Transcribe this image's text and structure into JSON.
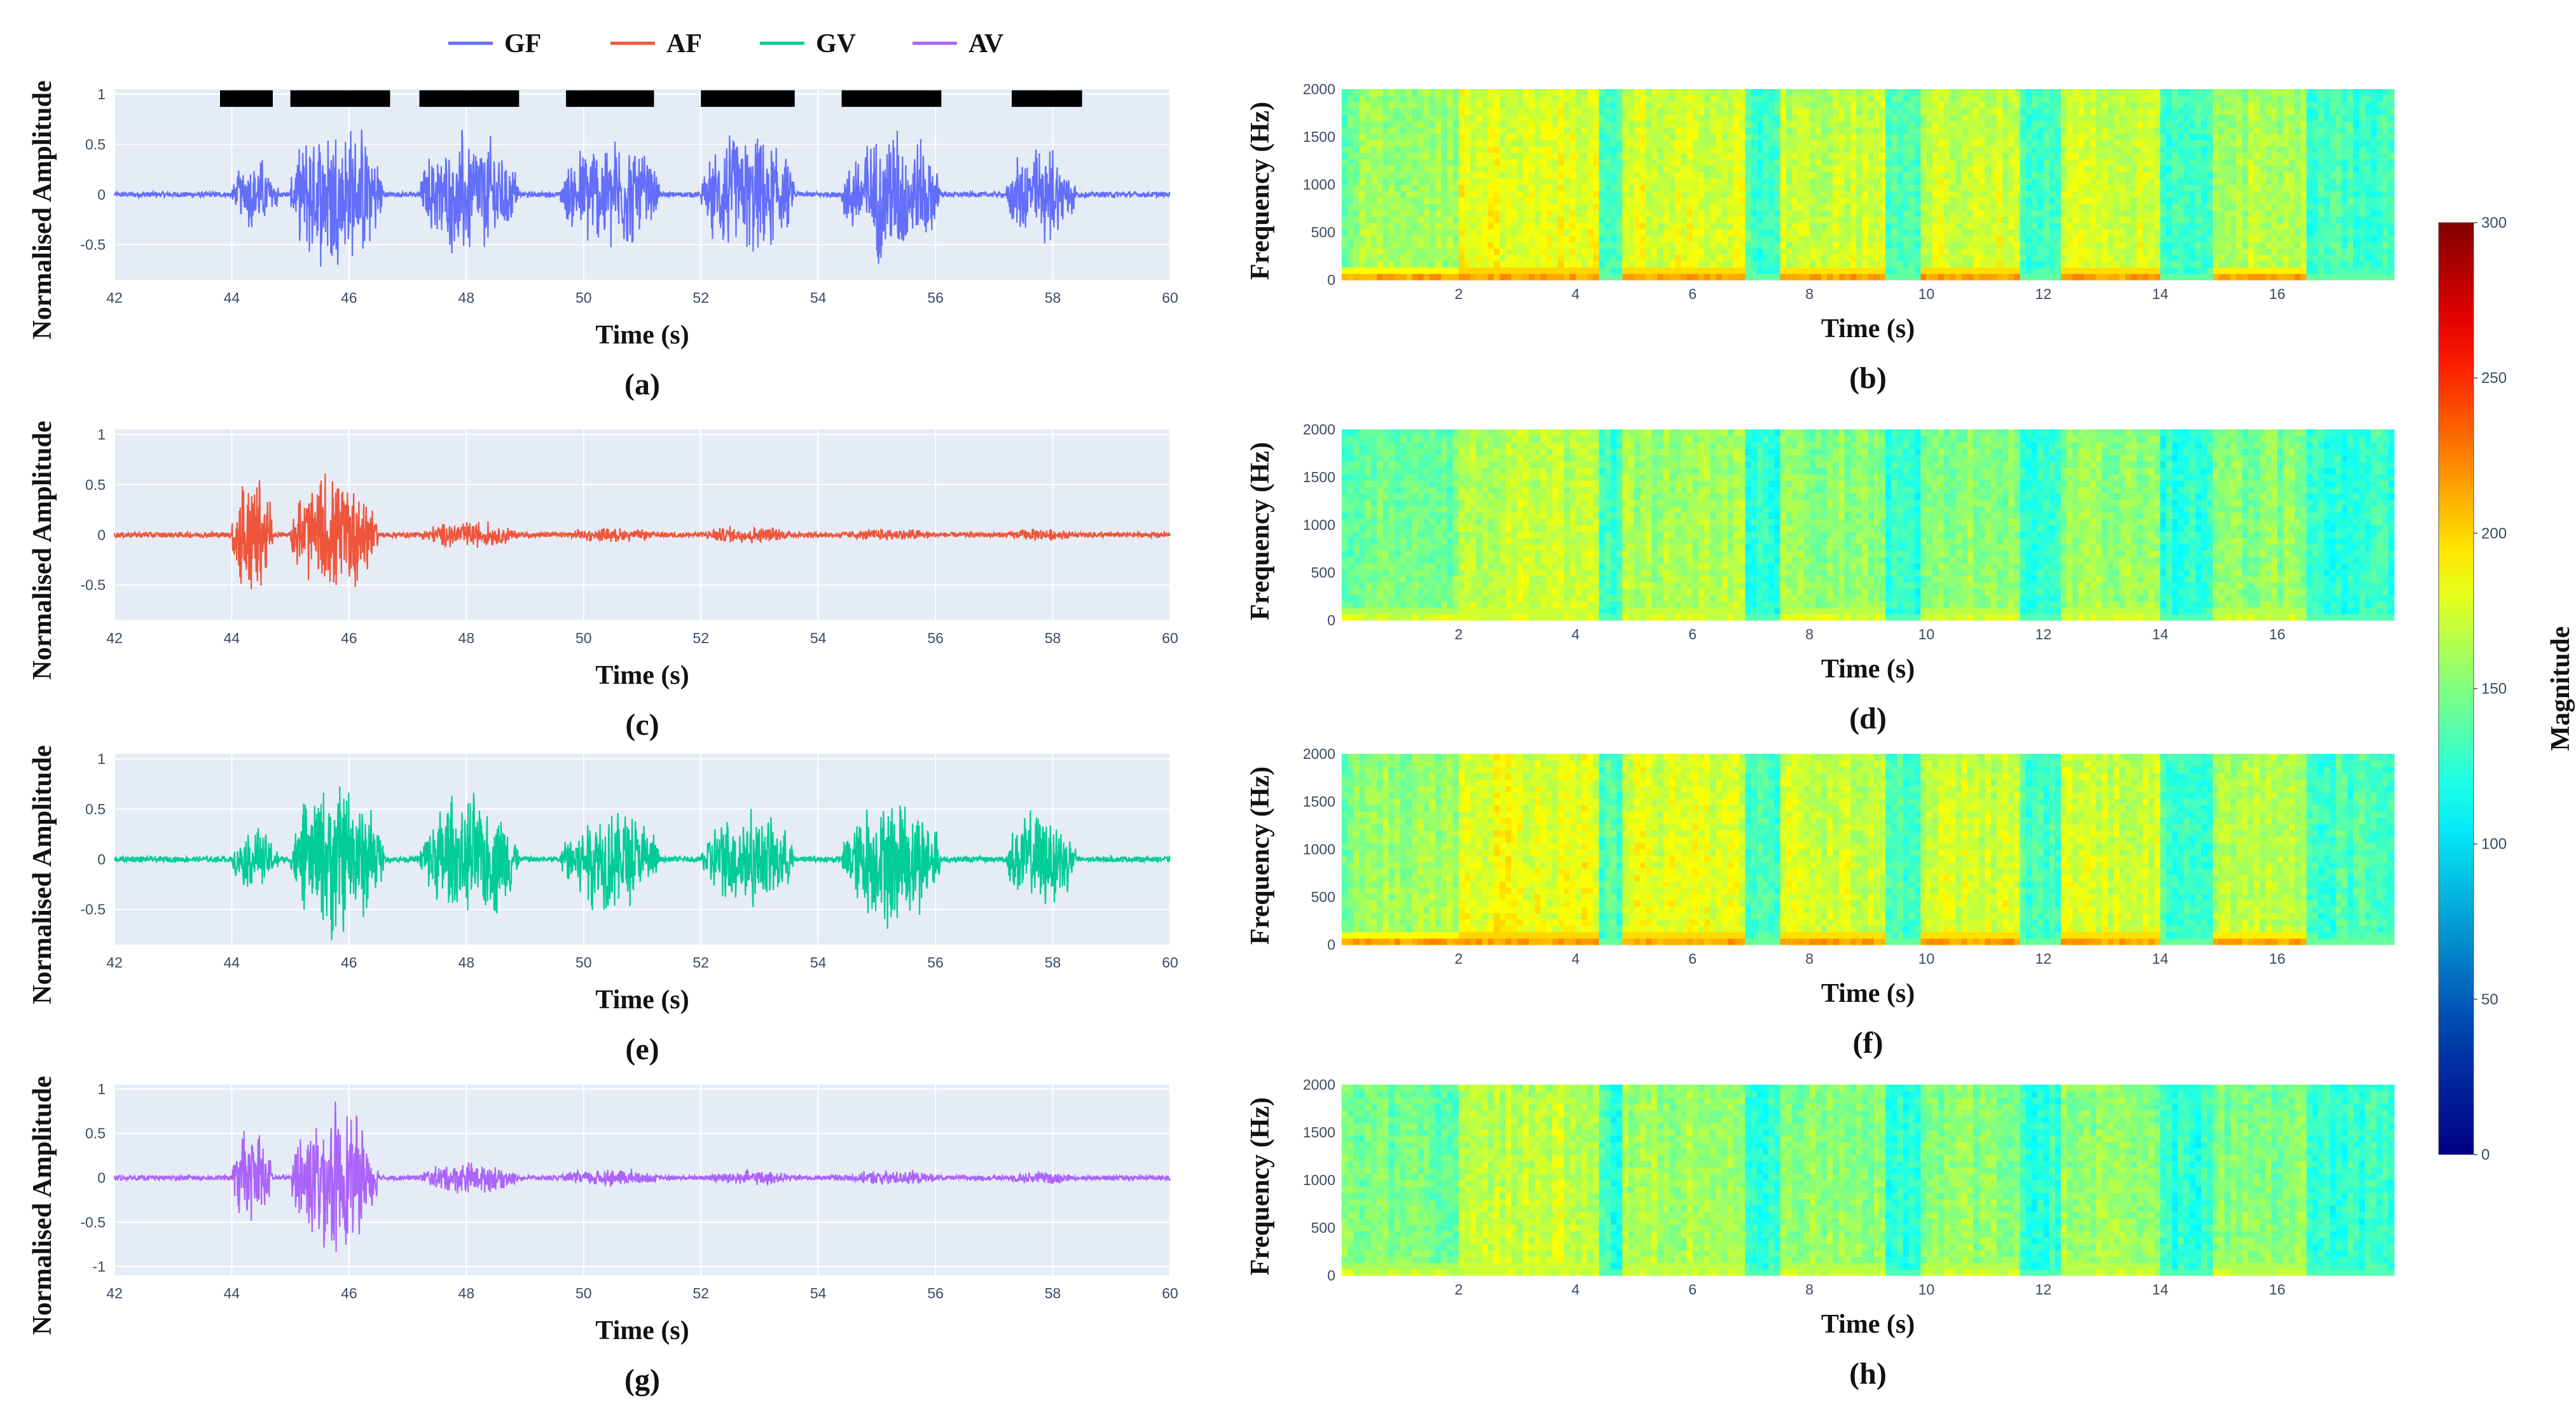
{
  "legend": [
    {
      "name": "GF",
      "color": "#636efa"
    },
    {
      "name": "AF",
      "color": "#ef553b"
    },
    {
      "name": "GV",
      "color": "#00cc96"
    },
    {
      "name": "AV",
      "color": "#ab63fa"
    }
  ],
  "colorbar": {
    "title": "Magnitude",
    "ticks": [
      "0",
      "50",
      "100",
      "150",
      "200",
      "250",
      "300"
    ],
    "range": [
      0,
      300
    ],
    "colorscale": "jet"
  },
  "chart_data": [
    {
      "id": "a",
      "type": "line",
      "caption": "(a)",
      "series": "GF",
      "color": "#636efa",
      "xlabel": "Time (s)",
      "ylabel": "Normalised Amplitude",
      "xlim": [
        42,
        60
      ],
      "ylim": [
        -0.85,
        1.05
      ],
      "xticks": [
        "42",
        "44",
        "46",
        "48",
        "50",
        "52",
        "54",
        "56",
        "58",
        "60"
      ],
      "yticks": [
        "1",
        "0.5",
        "0",
        "-0.5"
      ],
      "bursts": [
        {
          "start": 44.0,
          "end": 44.8,
          "amp": 0.4
        },
        {
          "start": 45.0,
          "end": 46.6,
          "amp": 0.85
        },
        {
          "start": 47.2,
          "end": 48.9,
          "amp": 0.7
        },
        {
          "start": 49.6,
          "end": 51.3,
          "amp": 0.65
        },
        {
          "start": 52.0,
          "end": 53.6,
          "amp": 0.7
        },
        {
          "start": 54.4,
          "end": 56.1,
          "amp": 0.75
        },
        {
          "start": 57.2,
          "end": 58.4,
          "amp": 0.55
        }
      ],
      "segment_markers": [
        [
          43.8,
          44.7
        ],
        [
          45.0,
          46.7
        ],
        [
          47.2,
          48.9
        ],
        [
          49.7,
          51.2
        ],
        [
          52.0,
          53.6
        ],
        [
          54.4,
          56.1
        ],
        [
          57.3,
          58.5
        ]
      ]
    },
    {
      "id": "c",
      "type": "line",
      "caption": "(c)",
      "series": "AF",
      "color": "#ef553b",
      "xlabel": "Time (s)",
      "ylabel": "Normalised Amplitude",
      "xlim": [
        42,
        60
      ],
      "ylim": [
        -0.85,
        1.05
      ],
      "xticks": [
        "42",
        "44",
        "46",
        "48",
        "50",
        "52",
        "54",
        "56",
        "58",
        "60"
      ],
      "yticks": [
        "1",
        "0.5",
        "0",
        "-0.5"
      ],
      "bursts": [
        {
          "start": 44.0,
          "end": 44.7,
          "amp": 0.75
        },
        {
          "start": 45.0,
          "end": 46.5,
          "amp": 0.7
        },
        {
          "start": 47.2,
          "end": 48.9,
          "amp": 0.15
        },
        {
          "start": 49.6,
          "end": 51.3,
          "amp": 0.08
        },
        {
          "start": 52.0,
          "end": 53.6,
          "amp": 0.1
        },
        {
          "start": 54.4,
          "end": 56.1,
          "amp": 0.07
        },
        {
          "start": 57.2,
          "end": 58.4,
          "amp": 0.07
        }
      ]
    },
    {
      "id": "e",
      "type": "line",
      "caption": "(e)",
      "series": "GV",
      "color": "#00cc96",
      "xlabel": "Time (s)",
      "ylabel": "Normalised Amplitude",
      "xlim": [
        42,
        60
      ],
      "ylim": [
        -0.85,
        1.05
      ],
      "xticks": [
        "42",
        "44",
        "46",
        "48",
        "50",
        "52",
        "54",
        "56",
        "58",
        "60"
      ],
      "yticks": [
        "1",
        "0.5",
        "0",
        "-0.5"
      ],
      "bursts": [
        {
          "start": 44.0,
          "end": 44.8,
          "amp": 0.35
        },
        {
          "start": 45.0,
          "end": 46.6,
          "amp": 0.85
        },
        {
          "start": 47.2,
          "end": 48.9,
          "amp": 0.75
        },
        {
          "start": 49.6,
          "end": 51.3,
          "amp": 0.6
        },
        {
          "start": 52.0,
          "end": 53.6,
          "amp": 0.55
        },
        {
          "start": 54.4,
          "end": 56.1,
          "amp": 0.75
        },
        {
          "start": 57.2,
          "end": 58.4,
          "amp": 0.55
        }
      ]
    },
    {
      "id": "g",
      "type": "line",
      "caption": "(g)",
      "series": "AV",
      "color": "#ab63fa",
      "xlabel": "Time (s)",
      "ylabel": "Normalised Amplitude",
      "xlim": [
        42,
        60
      ],
      "ylim": [
        -1.1,
        1.05
      ],
      "xticks": [
        "42",
        "44",
        "46",
        "48",
        "50",
        "52",
        "54",
        "56",
        "58",
        "60"
      ],
      "yticks": [
        "1",
        "0.5",
        "0",
        "-0.5",
        "-1"
      ],
      "bursts": [
        {
          "start": 44.0,
          "end": 44.7,
          "amp": 0.65
        },
        {
          "start": 45.0,
          "end": 46.5,
          "amp": 0.9
        },
        {
          "start": 47.2,
          "end": 48.9,
          "amp": 0.2
        },
        {
          "start": 49.6,
          "end": 51.3,
          "amp": 0.12
        },
        {
          "start": 52.0,
          "end": 53.6,
          "amp": 0.1
        },
        {
          "start": 54.4,
          "end": 56.1,
          "amp": 0.1
        },
        {
          "start": 57.2,
          "end": 58.4,
          "amp": 0.08
        }
      ]
    },
    {
      "id": "b",
      "type": "heatmap",
      "caption": "(b)",
      "series": "GF",
      "xlabel": "Time (s)",
      "ylabel": "Frequency (Hz)",
      "xlim": [
        0,
        18
      ],
      "ylim": [
        0,
        2000
      ],
      "xticks": [
        "2",
        "4",
        "6",
        "8",
        "10",
        "12",
        "14",
        "16"
      ],
      "yticks": [
        "0",
        "500",
        "1000",
        "1500",
        "2000"
      ],
      "background_magnitude": 150,
      "speech_segments": [
        {
          "start": 0.0,
          "end": 2.0,
          "mag": 160
        },
        {
          "start": 2.0,
          "end": 4.4,
          "mag": 185
        },
        {
          "start": 4.8,
          "end": 6.9,
          "mag": 180
        },
        {
          "start": 7.5,
          "end": 9.3,
          "mag": 175
        },
        {
          "start": 9.9,
          "end": 11.6,
          "mag": 178
        },
        {
          "start": 12.3,
          "end": 14.0,
          "mag": 178
        },
        {
          "start": 14.9,
          "end": 16.5,
          "mag": 168
        }
      ],
      "gap_magnitude": 130,
      "low_band_magnitude": 215
    },
    {
      "id": "d",
      "type": "heatmap",
      "caption": "(d)",
      "series": "AF",
      "xlabel": "Time (s)",
      "ylabel": "Frequency (Hz)",
      "xlim": [
        0,
        18
      ],
      "ylim": [
        0,
        2000
      ],
      "xticks": [
        "2",
        "4",
        "6",
        "8",
        "10",
        "12",
        "14",
        "16"
      ],
      "yticks": [
        "0",
        "500",
        "1000",
        "1500",
        "2000"
      ],
      "background_magnitude": 148,
      "speech_segments": [
        {
          "start": 0.0,
          "end": 2.0,
          "mag": 150
        },
        {
          "start": 2.0,
          "end": 4.4,
          "mag": 172
        },
        {
          "start": 4.8,
          "end": 6.9,
          "mag": 165
        },
        {
          "start": 7.5,
          "end": 9.3,
          "mag": 158
        },
        {
          "start": 9.9,
          "end": 11.6,
          "mag": 158
        },
        {
          "start": 12.3,
          "end": 14.0,
          "mag": 160
        },
        {
          "start": 14.9,
          "end": 16.5,
          "mag": 155
        }
      ],
      "gap_magnitude": 125,
      "low_band_magnitude": 175
    },
    {
      "id": "f",
      "type": "heatmap",
      "caption": "(f)",
      "series": "GV",
      "xlabel": "Time (s)",
      "ylabel": "Frequency (Hz)",
      "xlim": [
        0,
        18
      ],
      "ylim": [
        0,
        2000
      ],
      "xticks": [
        "2",
        "4",
        "6",
        "8",
        "10",
        "12",
        "14",
        "16"
      ],
      "yticks": [
        "0",
        "500",
        "1000",
        "1500",
        "2000"
      ],
      "background_magnitude": 152,
      "speech_segments": [
        {
          "start": 0.0,
          "end": 2.0,
          "mag": 162
        },
        {
          "start": 2.0,
          "end": 4.4,
          "mag": 185
        },
        {
          "start": 4.8,
          "end": 6.9,
          "mag": 182
        },
        {
          "start": 7.5,
          "end": 9.3,
          "mag": 178
        },
        {
          "start": 9.9,
          "end": 11.6,
          "mag": 178
        },
        {
          "start": 12.3,
          "end": 14.0,
          "mag": 178
        },
        {
          "start": 14.9,
          "end": 16.5,
          "mag": 170
        }
      ],
      "gap_magnitude": 132,
      "low_band_magnitude": 215
    },
    {
      "id": "h",
      "type": "heatmap",
      "caption": "(h)",
      "series": "AV",
      "xlabel": "Time (s)",
      "ylabel": "Frequency (Hz)",
      "xlim": [
        0,
        18
      ],
      "ylim": [
        0,
        2000
      ],
      "xticks": [
        "2",
        "4",
        "6",
        "8",
        "10",
        "12",
        "14",
        "16"
      ],
      "yticks": [
        "0",
        "500",
        "1000",
        "1500",
        "2000"
      ],
      "background_magnitude": 148,
      "speech_segments": [
        {
          "start": 0.0,
          "end": 2.0,
          "mag": 150
        },
        {
          "start": 2.0,
          "end": 4.4,
          "mag": 175
        },
        {
          "start": 4.8,
          "end": 6.9,
          "mag": 165
        },
        {
          "start": 7.5,
          "end": 9.3,
          "mag": 158
        },
        {
          "start": 9.9,
          "end": 11.6,
          "mag": 158
        },
        {
          "start": 12.3,
          "end": 14.0,
          "mag": 160
        },
        {
          "start": 14.9,
          "end": 16.5,
          "mag": 155
        }
      ],
      "gap_magnitude": 125,
      "low_band_magnitude": 172
    }
  ]
}
